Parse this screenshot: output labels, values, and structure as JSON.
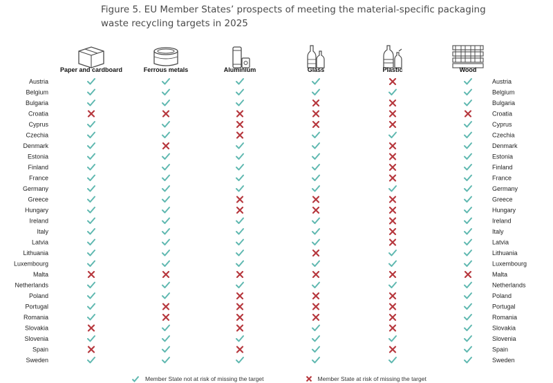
{
  "title": "Figure 5. EU Member States’ prospects of meeting the material-specific packaging waste recycling targets in 2025",
  "chart_data": {
    "type": "table",
    "columns": [
      {
        "name": "Paper and cardboard",
        "icon": "cardboard-box-icon"
      },
      {
        "name": "Ferrous metals",
        "icon": "tin-can-icon"
      },
      {
        "name": "Aluminium",
        "icon": "aluminium-can-icon"
      },
      {
        "name": "Glass",
        "icon": "glass-bottles-icon"
      },
      {
        "name": "Plastic",
        "icon": "plastic-bottles-icon"
      },
      {
        "name": "Wood",
        "icon": "wooden-pallet-icon"
      }
    ],
    "rows": [
      {
        "country": "Austria",
        "values": [
          1,
          1,
          1,
          1,
          0,
          1
        ]
      },
      {
        "country": "Belgium",
        "values": [
          1,
          1,
          1,
          1,
          1,
          1
        ]
      },
      {
        "country": "Bulgaria",
        "values": [
          1,
          1,
          1,
          0,
          0,
          1
        ]
      },
      {
        "country": "Croatia",
        "values": [
          0,
          0,
          0,
          0,
          0,
          0
        ]
      },
      {
        "country": "Cyprus",
        "values": [
          1,
          1,
          0,
          0,
          0,
          1
        ]
      },
      {
        "country": "Czechia",
        "values": [
          1,
          1,
          0,
          1,
          1,
          1
        ]
      },
      {
        "country": "Denmark",
        "values": [
          1,
          0,
          1,
          1,
          0,
          1
        ]
      },
      {
        "country": "Estonia",
        "values": [
          1,
          1,
          1,
          1,
          0,
          1
        ]
      },
      {
        "country": "Finland",
        "values": [
          1,
          1,
          1,
          1,
          0,
          1
        ]
      },
      {
        "country": "France",
        "values": [
          1,
          1,
          1,
          1,
          0,
          1
        ]
      },
      {
        "country": "Germany",
        "values": [
          1,
          1,
          1,
          1,
          1,
          1
        ]
      },
      {
        "country": "Greece",
        "values": [
          1,
          1,
          0,
          0,
          0,
          1
        ]
      },
      {
        "country": "Hungary",
        "values": [
          1,
          1,
          0,
          0,
          0,
          1
        ]
      },
      {
        "country": "Ireland",
        "values": [
          1,
          1,
          1,
          1,
          0,
          1
        ]
      },
      {
        "country": "Italy",
        "values": [
          1,
          1,
          1,
          1,
          0,
          1
        ]
      },
      {
        "country": "Latvia",
        "values": [
          1,
          1,
          1,
          1,
          0,
          1
        ]
      },
      {
        "country": "Lithuania",
        "values": [
          1,
          1,
          1,
          0,
          1,
          1
        ]
      },
      {
        "country": "Luxembourg",
        "values": [
          1,
          1,
          1,
          1,
          1,
          1
        ]
      },
      {
        "country": "Malta",
        "values": [
          0,
          0,
          0,
          0,
          0,
          0
        ]
      },
      {
        "country": "Netherlands",
        "values": [
          1,
          1,
          1,
          1,
          1,
          1
        ]
      },
      {
        "country": "Poland",
        "values": [
          1,
          1,
          0,
          0,
          0,
          1
        ]
      },
      {
        "country": "Portugal",
        "values": [
          1,
          0,
          0,
          0,
          0,
          1
        ]
      },
      {
        "country": "Romania",
        "values": [
          1,
          0,
          0,
          0,
          0,
          1
        ]
      },
      {
        "country": "Slovakia",
        "values": [
          0,
          1,
          0,
          1,
          0,
          1
        ]
      },
      {
        "country": "Slovenia",
        "values": [
          1,
          1,
          1,
          1,
          1,
          1
        ]
      },
      {
        "country": "Spain",
        "values": [
          0,
          1,
          0,
          1,
          0,
          1
        ]
      },
      {
        "country": "Sweden",
        "values": [
          1,
          1,
          1,
          1,
          1,
          1
        ]
      }
    ],
    "legend": [
      {
        "symbol": "check",
        "label": "Member State not at risk of missing the target"
      },
      {
        "symbol": "cross",
        "label": "Member State at risk of missing the target"
      }
    ],
    "colors": {
      "check": "#5fb8b0",
      "cross": "#b6373d",
      "icon": "#4a4a4a"
    }
  }
}
